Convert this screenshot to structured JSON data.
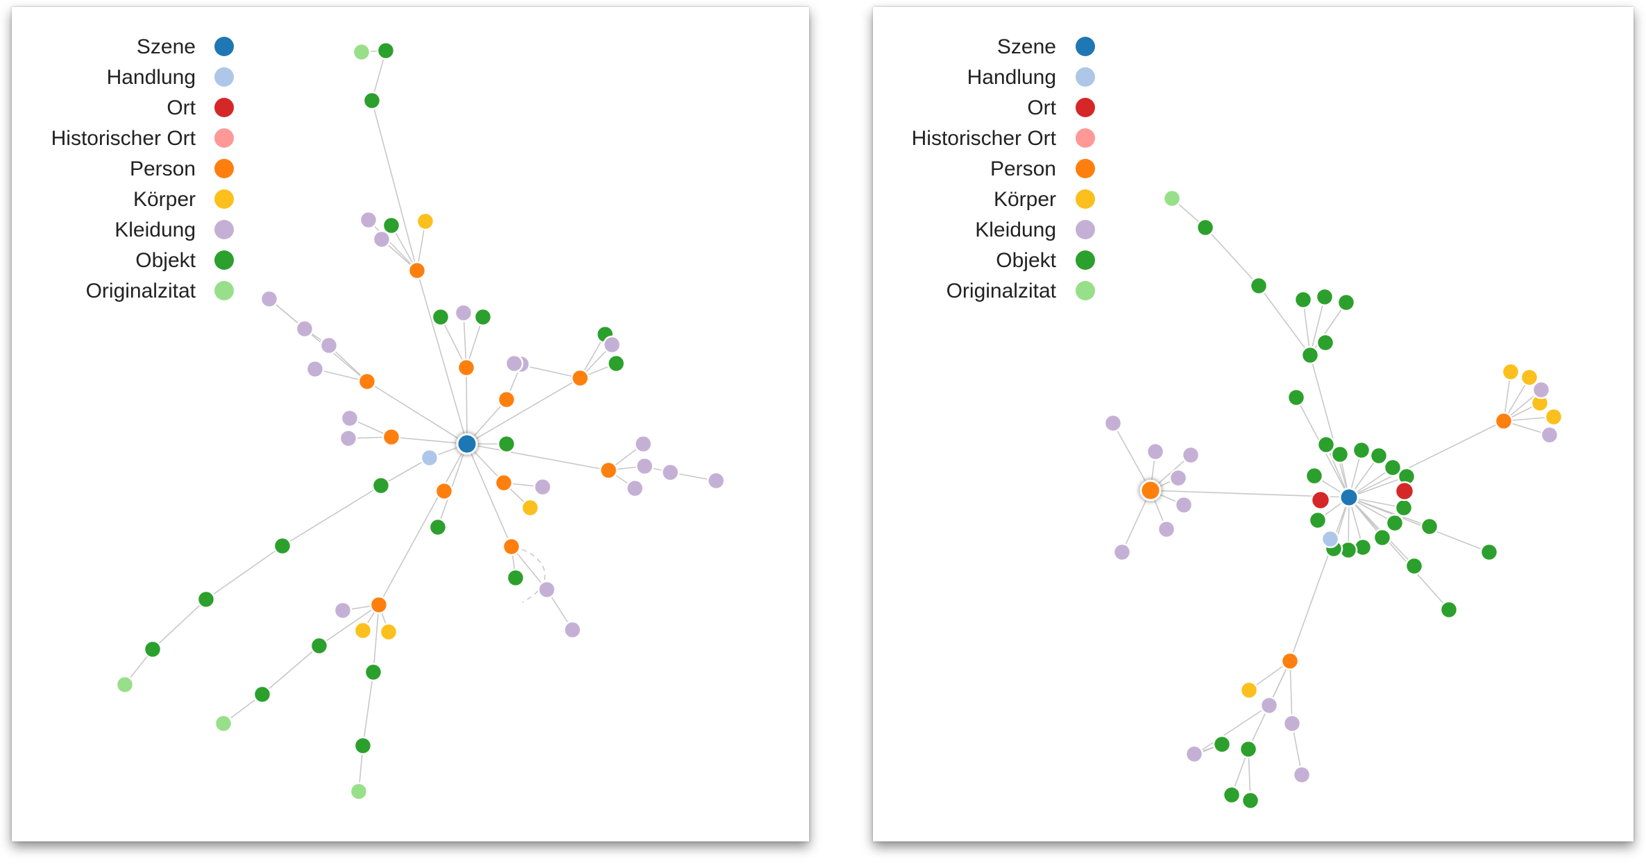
{
  "legend": [
    {
      "label": "Szene",
      "color": "#1f77b4"
    },
    {
      "label": "Handlung",
      "color": "#aec7e8"
    },
    {
      "label": "Ort",
      "color": "#d62728"
    },
    {
      "label": "Historischer Ort",
      "color": "#ff9896"
    },
    {
      "label": "Person",
      "color": "#ff7f0e"
    },
    {
      "label": "Körper",
      "color": "#fbc01d"
    },
    {
      "label": "Kleidung",
      "color": "#c5b0d5"
    },
    {
      "label": "Objekt",
      "color": "#2ca02c"
    },
    {
      "label": "Originalzitat",
      "color": "#98df8a"
    }
  ],
  "graphs": [
    {
      "name": "left-graph",
      "nodes": [
        {
          "id": "S",
          "type": "Szene"
        },
        {
          "id": "H1",
          "type": "Handlung"
        },
        {
          "id": "P1",
          "type": "Person"
        },
        {
          "id": "P2",
          "type": "Person"
        },
        {
          "id": "P3",
          "type": "Person"
        },
        {
          "id": "P4",
          "type": "Person"
        },
        {
          "id": "P5",
          "type": "Person"
        },
        {
          "id": "P6",
          "type": "Person"
        },
        {
          "id": "P7",
          "type": "Person"
        },
        {
          "id": "P8",
          "type": "Person"
        },
        {
          "id": "P9",
          "type": "Person"
        },
        {
          "id": "P10",
          "type": "Person"
        },
        {
          "id": "P11",
          "type": "Person"
        },
        {
          "id": "Oa1",
          "type": "Objekt"
        },
        {
          "id": "Oa2",
          "type": "Objekt"
        },
        {
          "id": "Qa",
          "type": "Originalzitat"
        },
        {
          "id": "K1a",
          "type": "Kleidung"
        },
        {
          "id": "K1b",
          "type": "Kleidung"
        },
        {
          "id": "O1c",
          "type": "Objekt"
        },
        {
          "id": "B1",
          "type": "Körper"
        },
        {
          "id": "O2a",
          "type": "Objekt"
        },
        {
          "id": "K2a",
          "type": "Kleidung"
        },
        {
          "id": "O2b",
          "type": "Objekt"
        },
        {
          "id": "K3a",
          "type": "Kleidung"
        },
        {
          "id": "K4a",
          "type": "Kleidung"
        },
        {
          "id": "O4b",
          "type": "Objekt"
        },
        {
          "id": "K4c",
          "type": "Kleidung"
        },
        {
          "id": "O4d",
          "type": "Objekt"
        },
        {
          "id": "K5a",
          "type": "Kleidung"
        },
        {
          "id": "K5b",
          "type": "Kleidung"
        },
        {
          "id": "K5c",
          "type": "Kleidung"
        },
        {
          "id": "K5d",
          "type": "Kleidung"
        },
        {
          "id": "K6a",
          "type": "Kleidung"
        },
        {
          "id": "K6b",
          "type": "Kleidung"
        },
        {
          "id": "O7",
          "type": "Objekt"
        },
        {
          "id": "K8a",
          "type": "Kleidung"
        },
        {
          "id": "K8b",
          "type": "Kleidung"
        },
        {
          "id": "K8c",
          "type": "Kleidung"
        },
        {
          "id": "K8d",
          "type": "Kleidung"
        },
        {
          "id": "K8e",
          "type": "Kleidung"
        },
        {
          "id": "K9a",
          "type": "Kleidung"
        },
        {
          "id": "B9b",
          "type": "Körper"
        },
        {
          "id": "O10",
          "type": "Objekt"
        },
        {
          "id": "O11a",
          "type": "Objekt"
        },
        {
          "id": "K11b",
          "type": "Kleidung"
        },
        {
          "id": "K11c",
          "type": "Kleidung"
        },
        {
          "id": "OL1",
          "type": "Objekt"
        },
        {
          "id": "OL2",
          "type": "Objekt"
        },
        {
          "id": "OL3",
          "type": "Objekt"
        },
        {
          "id": "OL4",
          "type": "Objekt"
        },
        {
          "id": "QL",
          "type": "Originalzitat"
        },
        {
          "id": "K12a",
          "type": "Kleidung"
        },
        {
          "id": "B12b",
          "type": "Körper"
        },
        {
          "id": "B12c",
          "type": "Körper"
        },
        {
          "id": "O12d",
          "type": "Objekt"
        },
        {
          "id": "O12e",
          "type": "Objekt"
        },
        {
          "id": "Q12f",
          "type": "Originalzitat"
        },
        {
          "id": "O12g",
          "type": "Objekt"
        },
        {
          "id": "O12h",
          "type": "Objekt"
        },
        {
          "id": "Q12i",
          "type": "Originalzitat"
        },
        {
          "id": "P12",
          "type": "Person"
        }
      ]
    },
    {
      "name": "right-graph",
      "nodes": [
        {
          "id": "S",
          "type": "Szene"
        },
        {
          "id": "H",
          "type": "Handlung"
        },
        {
          "id": "R1",
          "type": "Ort"
        },
        {
          "id": "R2",
          "type": "Ort"
        },
        {
          "id": "P1",
          "type": "Person"
        },
        {
          "id": "P2",
          "type": "Person"
        },
        {
          "id": "P3",
          "type": "Person"
        },
        {
          "id": "Q",
          "type": "Originalzitat"
        },
        {
          "id": "O1",
          "type": "Objekt"
        },
        {
          "id": "O2",
          "type": "Objekt"
        },
        {
          "id": "O3",
          "type": "Objekt"
        },
        {
          "id": "O4",
          "type": "Objekt"
        },
        {
          "id": "O5",
          "type": "Objekt"
        },
        {
          "id": "O6",
          "type": "Objekt"
        },
        {
          "id": "B1",
          "type": "Körper"
        },
        {
          "id": "B2",
          "type": "Körper"
        },
        {
          "id": "B3",
          "type": "Körper"
        },
        {
          "id": "B4",
          "type": "Körper"
        },
        {
          "id": "K1",
          "type": "Kleidung"
        },
        {
          "id": "K2",
          "type": "Kleidung"
        },
        {
          "id": "K3",
          "type": "Kleidung"
        },
        {
          "id": "K4",
          "type": "Kleidung"
        },
        {
          "id": "K5",
          "type": "Kleidung"
        },
        {
          "id": "K6",
          "type": "Kleidung"
        },
        {
          "id": "K7",
          "type": "Kleidung"
        },
        {
          "id": "K8",
          "type": "Kleidung"
        },
        {
          "id": "K9",
          "type": "Kleidung"
        }
      ]
    }
  ]
}
